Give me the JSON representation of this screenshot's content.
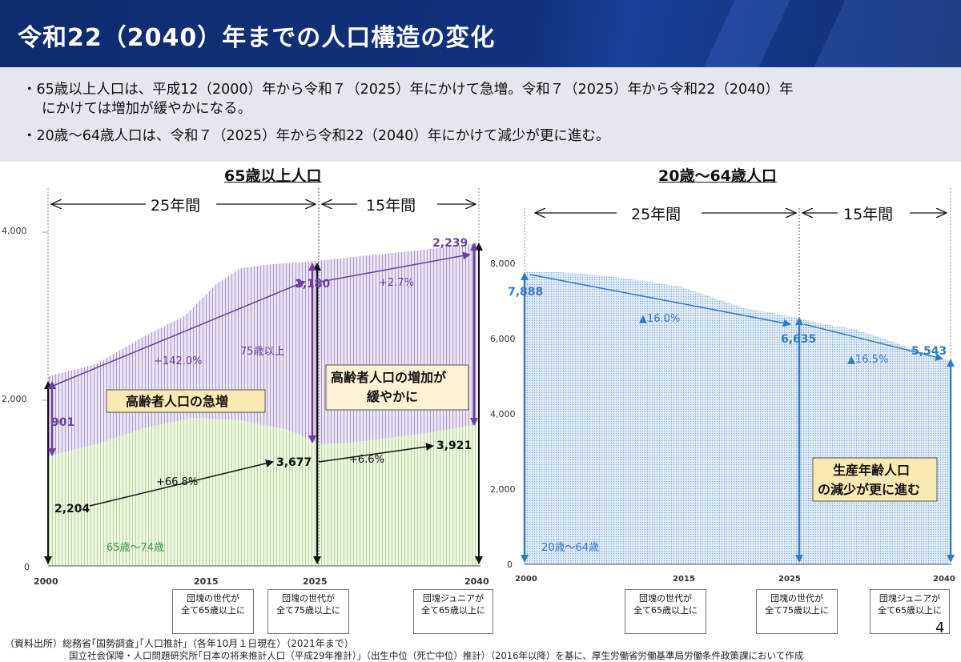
{
  "title": "令和22（2040）年までの人口構造の変化",
  "bullets": [
    "・65歳以上人口は、平成12（2000）年から令和７（2025）年にかけて急増。令和７（2025）年から令和22（2040）年",
    "にかけては増加が緩やかになる。",
    "・20歳～64歳人口は、令和７（2025）年から令和22（2040）年にかけて減少が更に進む。"
  ],
  "left_chart": {
    "title": "65歳以上人口",
    "period_a": "25年間",
    "period_b": "15年間",
    "y_ticks": [
      "4,000",
      "2,000",
      "0"
    ],
    "x_ticks": [
      "2000",
      "2015",
      "2025",
      "2040"
    ],
    "label_75": "75歳以上",
    "label_65_74": "65歳～74歳",
    "callout_1": "高齢者人口の急増",
    "callout_2a": "高齢者人口の増加が",
    "callout_2b": "緩やかに",
    "v_2000_75": "901",
    "v_2025_75": "2,180",
    "v_2040_75": "2,239",
    "v_2000_65": "2,204",
    "v_2025_65": "3,677",
    "v_2040_65": "3,921",
    "g_75_a": "+142.0%",
    "g_75_b": "+2.7%",
    "g_65_a": "+66.8%",
    "g_65_b": "+6.6%",
    "colors": {
      "purple": "#6a3fa0",
      "green": "#3c9a4c"
    }
  },
  "right_chart": {
    "title": "20歳～64歳人口",
    "period_a": "25年間",
    "period_b": "15年間",
    "y_ticks": [
      "8,000",
      "6,000",
      "4,000",
      "2,000",
      "0"
    ],
    "x_ticks": [
      "2000",
      "2015",
      "2025",
      "2040"
    ],
    "label_area": "20歳～64歳",
    "callout_a": "生産年齢人口",
    "callout_b": "の減少が更に進む",
    "v_2000": "7,888",
    "v_2025": "6,635",
    "v_2040": "5,543",
    "g_a": "▲16.0%",
    "g_b": "▲16.5%",
    "colors": {
      "blue": "#2f7bc4"
    }
  },
  "notes": {
    "baby_boom_65": [
      "団塊の世代が",
      "全て65歳以上に"
    ],
    "baby_boom_75": [
      "団塊の世代が",
      "全て75歳以上に"
    ],
    "junior_65": [
      "団塊ジュニアが",
      "全て65歳以上に"
    ]
  },
  "page_number": "4",
  "source_1": "（資料出所）総務省｢国勢調査｣｢人口推計｣（各年10月１日現在）（2021年まで）",
  "source_2": "国立社会保障・人口問題研究所｢日本の将来推計人口（平成29年推計）｣（出生中位（死亡中位）推計）（2016年以降）を基に、厚生労働省労働基準局労働条件政策課において作成"
}
